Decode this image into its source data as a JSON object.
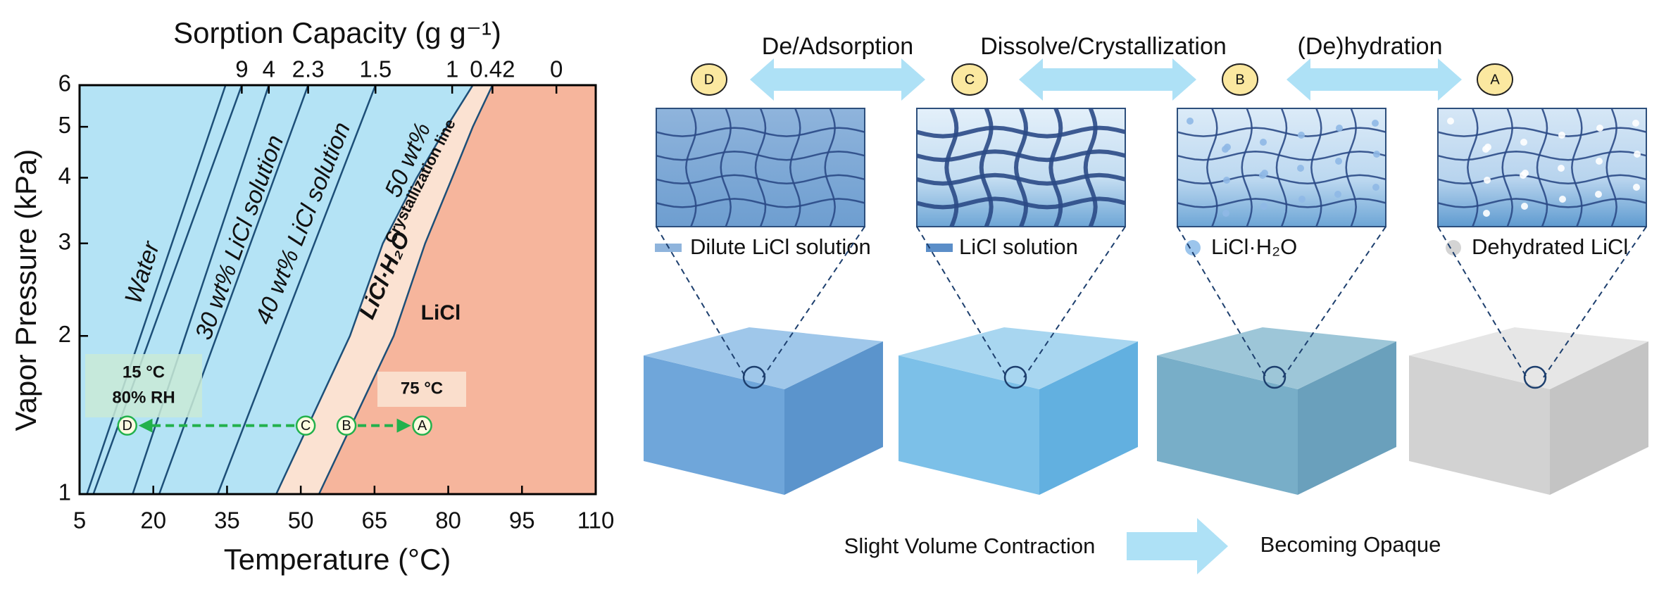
{
  "chart_data": {
    "type": "line",
    "x2label": "Sorption Capacity (g g⁻¹)",
    "xlabel": "Temperature (°C)",
    "ylabel": "Vapor Pressure (kPa)",
    "xlim": [
      5,
      110
    ],
    "xticks": [
      5,
      20,
      35,
      50,
      65,
      80,
      95,
      110
    ],
    "ylim": [
      1,
      6
    ],
    "yticks": [
      1,
      2,
      3,
      4,
      5,
      6
    ],
    "ylog": true,
    "x2ticks": [
      {
        "value": 9,
        "at": 38
      },
      {
        "value": 4,
        "at": 43.5
      },
      {
        "value": 2.3,
        "at": 51.5
      },
      {
        "value": 1.5,
        "at": 65.2
      },
      {
        "value": 1,
        "at": 80.8
      },
      {
        "value": 0.42,
        "at": 89
      },
      {
        "value": 0,
        "at": 102
      }
    ],
    "series": [
      {
        "color": "#1d4f78",
        "x": [
          6.5,
          34.7
        ],
        "y": [
          1,
          6
        ]
      },
      {
        "color": "#1d4f78",
        "x": [
          7.8,
          38
        ],
        "y": [
          1,
          6
        ]
      },
      {
        "color": "#1d4f78",
        "x": [
          15.8,
          43.5
        ],
        "y": [
          1,
          6
        ]
      },
      {
        "color": "#1d4f78",
        "x": [
          21.2,
          51.5
        ],
        "y": [
          1,
          6
        ]
      },
      {
        "color": "#1d4f78",
        "x": [
          33.1,
          65.2
        ],
        "y": [
          1,
          6
        ]
      }
    ],
    "boundaries": [
      {
        "color": "#1d4f78",
        "x": [
          45,
          60,
          66.7,
          73.6,
          79.7,
          85
        ],
        "y": [
          1,
          2,
          3,
          4,
          5,
          6
        ]
      },
      {
        "name": "Crystallization line",
        "color": "#1d4f78",
        "x": [
          53.7,
          68.9,
          75.3,
          80.8,
          85,
          89
        ],
        "y": [
          1,
          2,
          3,
          4,
          5,
          6
        ]
      }
    ],
    "region_colors": [
      "#b4e3f5",
      "#fbe2d2",
      "#f6b59c"
    ],
    "annotations": [
      "Water",
      "30 wt% LiCl solution",
      "40 wt% LiCl solution",
      "50 wt%",
      "LiCl·H₂O",
      "LiCl"
    ],
    "points": {
      "labels": [
        "D",
        "C",
        "B",
        "A"
      ],
      "x": [
        14.7,
        51,
        59.3,
        74.7
      ],
      "y": [
        1.35,
        1.35,
        1.35,
        1.35
      ],
      "color": "#22b14c"
    },
    "notes": [
      "15 °C",
      "80% RH",
      "75 °C"
    ]
  },
  "diagram": {
    "processes": [
      "De/Adsorption",
      "Dissolve/Crystallization",
      "(De)hydration"
    ],
    "states": [
      {
        "badge": "D",
        "legend": "Dilute LiCl solution"
      },
      {
        "badge": "C",
        "legend": "LiCl solution"
      },
      {
        "badge": "B",
        "legend": "LiCl·H₂O"
      },
      {
        "badge": "A",
        "legend": "Dehydrated LiCl"
      }
    ],
    "bottom": {
      "left": "Slight Volume Contraction",
      "right": "Becoming Opaque"
    }
  }
}
